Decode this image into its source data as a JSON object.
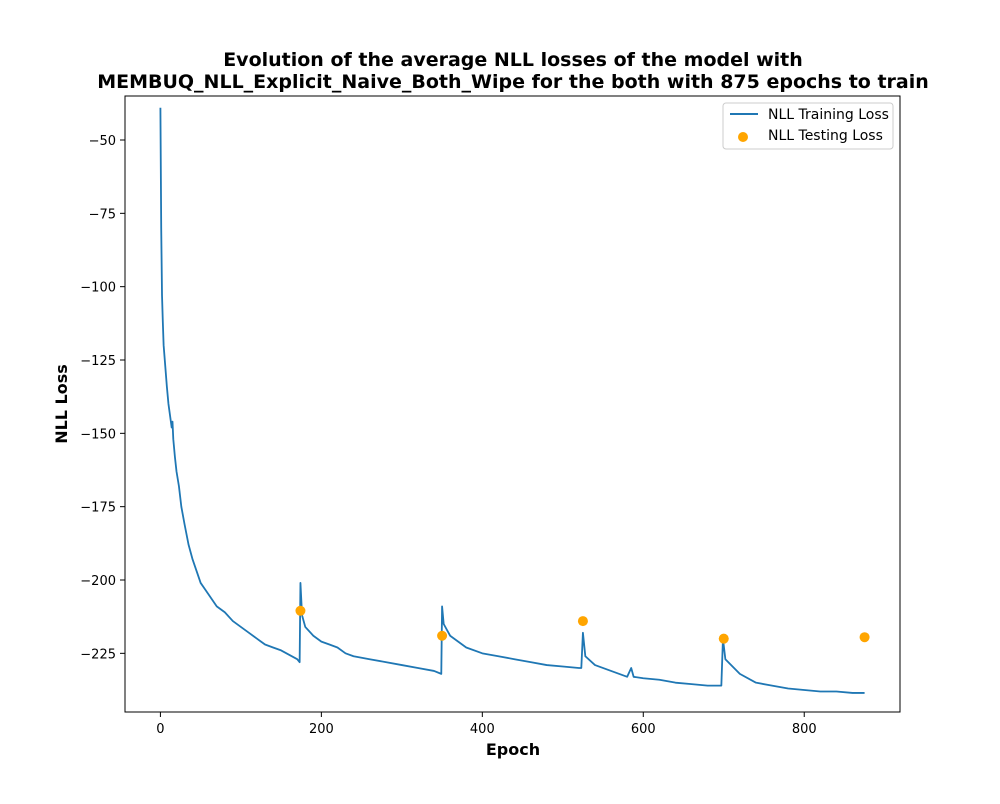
{
  "chart_data": {
    "type": "line",
    "title_line1": "Evolution of the average NLL losses of the model with",
    "title_line2": "MEMBUQ_NLL_Explicit_Naive_Both_Wipe for the both with 875 epochs to train",
    "xlabel": "Epoch",
    "ylabel": "NLL Loss",
    "xlim": [
      -44,
      919
    ],
    "ylim": [
      -245,
      -35
    ],
    "xticks": [
      0,
      200,
      400,
      600,
      800
    ],
    "yticks": [
      -50,
      -75,
      -100,
      -125,
      -150,
      -175,
      -200,
      -225
    ],
    "grid": false,
    "legend_position": "top-right",
    "series": [
      {
        "name": "NLL Training Loss",
        "kind": "line",
        "color": "#1f77b4",
        "points": [
          [
            0,
            -39
          ],
          [
            1,
            -80
          ],
          [
            2,
            -103
          ],
          [
            3,
            -112
          ],
          [
            4,
            -120
          ],
          [
            6,
            -127
          ],
          [
            8,
            -134
          ],
          [
            10,
            -140
          ],
          [
            12,
            -144
          ],
          [
            14,
            -148
          ],
          [
            15,
            -146
          ],
          [
            16,
            -152
          ],
          [
            18,
            -158
          ],
          [
            20,
            -163
          ],
          [
            23,
            -168
          ],
          [
            26,
            -175
          ],
          [
            30,
            -181
          ],
          [
            35,
            -188
          ],
          [
            40,
            -193
          ],
          [
            45,
            -197
          ],
          [
            50,
            -201
          ],
          [
            55,
            -203
          ],
          [
            60,
            -205
          ],
          [
            65,
            -207
          ],
          [
            70,
            -209
          ],
          [
            80,
            -211
          ],
          [
            90,
            -214
          ],
          [
            100,
            -216
          ],
          [
            110,
            -218
          ],
          [
            120,
            -220
          ],
          [
            125,
            -221
          ],
          [
            130,
            -222
          ],
          [
            140,
            -223
          ],
          [
            150,
            -224
          ],
          [
            160,
            -225.5
          ],
          [
            170,
            -227
          ],
          [
            173,
            -228
          ],
          [
            174,
            -201
          ],
          [
            176,
            -212
          ],
          [
            180,
            -216
          ],
          [
            190,
            -219
          ],
          [
            200,
            -221
          ],
          [
            210,
            -222
          ],
          [
            220,
            -223
          ],
          [
            230,
            -225
          ],
          [
            240,
            -226
          ],
          [
            260,
            -227
          ],
          [
            280,
            -228
          ],
          [
            300,
            -229
          ],
          [
            320,
            -230
          ],
          [
            340,
            -231
          ],
          [
            349,
            -232
          ],
          [
            350,
            -209
          ],
          [
            352,
            -215
          ],
          [
            360,
            -219
          ],
          [
            380,
            -223
          ],
          [
            400,
            -225
          ],
          [
            420,
            -226
          ],
          [
            440,
            -227
          ],
          [
            460,
            -228
          ],
          [
            480,
            -229
          ],
          [
            500,
            -229.5
          ],
          [
            520,
            -230
          ],
          [
            523,
            -230
          ],
          [
            525,
            -218
          ],
          [
            528,
            -226
          ],
          [
            540,
            -229
          ],
          [
            560,
            -231
          ],
          [
            580,
            -233
          ],
          [
            585,
            -230
          ],
          [
            588,
            -233
          ],
          [
            600,
            -233.5
          ],
          [
            620,
            -234
          ],
          [
            640,
            -235
          ],
          [
            660,
            -235.5
          ],
          [
            680,
            -236
          ],
          [
            697,
            -236
          ],
          [
            699,
            -220
          ],
          [
            702,
            -227
          ],
          [
            720,
            -232
          ],
          [
            740,
            -235
          ],
          [
            760,
            -236
          ],
          [
            780,
            -237
          ],
          [
            800,
            -237.5
          ],
          [
            820,
            -238
          ],
          [
            840,
            -238
          ],
          [
            860,
            -238.5
          ],
          [
            875,
            -238.5
          ]
        ]
      },
      {
        "name": "NLL Testing Loss",
        "kind": "scatter",
        "color": "#ffa500",
        "points": [
          [
            174,
            -210.5
          ],
          [
            350,
            -219
          ],
          [
            525,
            -214
          ],
          [
            700,
            -220
          ],
          [
            875,
            -219.5
          ]
        ]
      }
    ]
  }
}
